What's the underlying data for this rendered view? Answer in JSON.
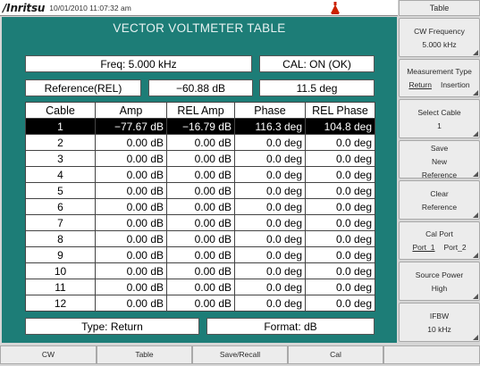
{
  "header": {
    "brand": "/Inritsu",
    "datetime": "10/01/2010 11:07:32 am",
    "status_icon": "external-power-icon"
  },
  "main": {
    "title": "VECTOR VOLTMETER TABLE",
    "freq": "Freq: 5.000 kHz",
    "cal": "CAL: ON (OK)",
    "reference_label": "Reference(REL)",
    "reference_amp": "−60.88 dB",
    "reference_phase": "11.5 deg",
    "type": "Type: Return",
    "format": "Format: dB"
  },
  "table": {
    "headers": [
      "Cable",
      "Amp",
      "REL Amp",
      "Phase",
      "REL Phase"
    ],
    "rows": [
      [
        "1",
        "−77.67 dB",
        "−16.79 dB",
        "116.3 deg",
        "104.8 deg"
      ],
      [
        "2",
        "0.00 dB",
        "0.00 dB",
        "0.0 deg",
        "0.0 deg"
      ],
      [
        "3",
        "0.00 dB",
        "0.00 dB",
        "0.0 deg",
        "0.0 deg"
      ],
      [
        "4",
        "0.00 dB",
        "0.00 dB",
        "0.0 deg",
        "0.0 deg"
      ],
      [
        "5",
        "0.00 dB",
        "0.00 dB",
        "0.0 deg",
        "0.0 deg"
      ],
      [
        "6",
        "0.00 dB",
        "0.00 dB",
        "0.0 deg",
        "0.0 deg"
      ],
      [
        "7",
        "0.00 dB",
        "0.00 dB",
        "0.0 deg",
        "0.0 deg"
      ],
      [
        "8",
        "0.00 dB",
        "0.00 dB",
        "0.0 deg",
        "0.0 deg"
      ],
      [
        "9",
        "0.00 dB",
        "0.00 dB",
        "0.0 deg",
        "0.0 deg"
      ],
      [
        "10",
        "0.00 dB",
        "0.00 dB",
        "0.0 deg",
        "0.0 deg"
      ],
      [
        "11",
        "0.00 dB",
        "0.00 dB",
        "0.0 deg",
        "0.0 deg"
      ],
      [
        "12",
        "0.00 dB",
        "0.00 dB",
        "0.0 deg",
        "0.0 deg"
      ]
    ],
    "selected_row": 0
  },
  "sidebar": {
    "title": "Table",
    "keys": [
      {
        "name": "softkey-cw-frequency",
        "lines": [
          "CW Frequency",
          "5.000 kHz"
        ]
      },
      {
        "name": "softkey-measurement-type",
        "lines": [
          "Measurement Type"
        ],
        "options": [
          "Return",
          "Insertion"
        ]
      },
      {
        "name": "softkey-select-cable",
        "lines": [
          "Select Cable",
          "1"
        ]
      },
      {
        "name": "softkey-save-new-reference",
        "lines": [
          "Save",
          "New",
          "Reference"
        ]
      },
      {
        "name": "softkey-clear-reference",
        "lines": [
          "Clear",
          "Reference"
        ]
      },
      {
        "name": "softkey-cal-port",
        "lines": [
          "Cal Port"
        ],
        "options": [
          "Port_1",
          "Port_2"
        ]
      },
      {
        "name": "softkey-source-power",
        "lines": [
          "Source Power",
          "High"
        ]
      },
      {
        "name": "softkey-ifbw",
        "lines": [
          "IFBW",
          "10 kHz"
        ]
      }
    ]
  },
  "bottom_menu": [
    "CW",
    "Table",
    "Save/Recall",
    "Cal"
  ],
  "colors": {
    "panel": "#1d7d77",
    "selected_row": "#000000"
  }
}
